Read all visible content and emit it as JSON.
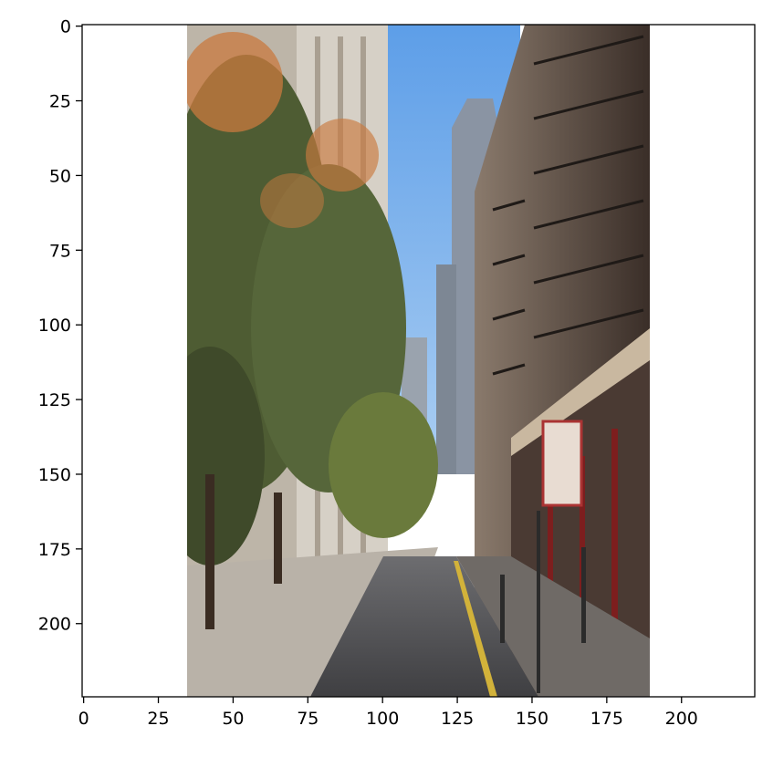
{
  "figure": {
    "type": "image-plot",
    "image_description_id": "street-scene",
    "axes": {
      "x_ticks": [
        0,
        25,
        50,
        75,
        100,
        125,
        150,
        175,
        200
      ],
      "y_ticks": [
        0,
        25,
        50,
        75,
        100,
        125,
        150,
        175,
        200
      ],
      "x_range": [
        -0.5,
        224.5
      ],
      "y_range": [
        224.5,
        -0.5
      ]
    },
    "image": {
      "content_x_range": [
        35,
        189
      ],
      "colors": {
        "sky": "#5d9ee8",
        "sky_light": "#a9cdf2",
        "road": "#3f3f42",
        "sidewalk": "#b9b2a8",
        "foliage": "#4e5c33",
        "foliage_orange": "#c9793f",
        "building_left": "#d6d0c6",
        "building_right": "#6b5a4c",
        "tower": "#8a94a3",
        "lane_line": "#d2b23a"
      }
    }
  }
}
